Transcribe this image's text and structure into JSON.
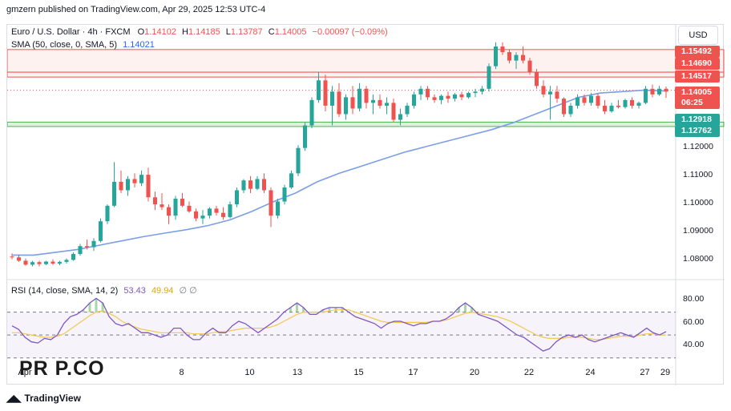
{
  "header": {
    "publisher_line": "gmzern published on TradingView.com, Apr 29, 2025 12:53 UTC-4"
  },
  "legend": {
    "symbol": "Euro / U.S. Dollar · 4h · FXCM",
    "open_label": "O",
    "open": "1.14102",
    "high_label": "H",
    "high": "1.14185",
    "low_label": "L",
    "low": "1.13787",
    "close_label": "C",
    "close": "1.14005",
    "change": "−0.00097 (−0.09%)",
    "sma_label": "SMA (50, close, 0, SMA, 5)",
    "sma_value": "1.14021",
    "rsi_label": "RSI (14, close, SMA, 14, 2)",
    "rsi_value": "53.43",
    "rsi_sma_value": "49.94",
    "rsi_extra": "∅ ∅"
  },
  "currency_button": "USD",
  "price_axis": {
    "ticks": [
      "1.12000",
      "1.11000",
      "1.10000",
      "1.09000",
      "1.08000"
    ],
    "tags": [
      {
        "text": "1.15492",
        "color": "#ef5350",
        "y": 1.15492
      },
      {
        "text": "1.14690",
        "color": "#ef5350",
        "y": 1.1469
      },
      {
        "text": "1.14517",
        "color": "#ef5350",
        "y": 1.14517
      },
      {
        "text": "1.14005",
        "color": "#ef5350",
        "y": 1.1405
      },
      {
        "text": "06:25",
        "color": "#ef5350",
        "y": 1.136
      },
      {
        "text": "1.12918",
        "color": "#26a69a",
        "y": 1.12918
      },
      {
        "text": "1.12762",
        "color": "#26a69a",
        "y": 1.12762
      }
    ]
  },
  "rsi_axis": {
    "ticks": [
      "80.00",
      "60.00",
      "40.00"
    ]
  },
  "time_axis": {
    "ticks": [
      "Apr",
      "8",
      "10",
      "13",
      "15",
      "17",
      "20",
      "22",
      "24",
      "27",
      "29"
    ]
  },
  "watermark": "PR P.CO",
  "brand": "TradingView",
  "colors": {
    "up": "#26a69a",
    "down": "#ef5350",
    "sma": "#2962ff",
    "rsi": "#7e57c2",
    "rsi_sma": "#f2c94c",
    "resistance_zone": "#ef5350",
    "support_zone": "#4caf50"
  },
  "chart_data": {
    "type": "candlestick",
    "symbol": "EURUSD",
    "timeframe": "4h",
    "ylim": [
      1.077,
      1.158
    ],
    "zones": {
      "resistance_upper": [
        1.1469,
        1.15492
      ],
      "resistance_lower": [
        1.14517,
        1.1469
      ],
      "support": [
        1.12762,
        1.12918
      ]
    },
    "candles": [
      [
        1.0815,
        1.0826,
        1.0805,
        1.0812
      ],
      [
        1.0812,
        1.0822,
        1.0796,
        1.08
      ],
      [
        1.08,
        1.0808,
        1.0782,
        1.0786
      ],
      [
        1.0786,
        1.08,
        1.078,
        1.0795
      ],
      [
        1.0795,
        1.08,
        1.078,
        1.0788
      ],
      [
        1.0788,
        1.08,
        1.0784,
        1.0797
      ],
      [
        1.0797,
        1.0805,
        1.0785,
        1.079
      ],
      [
        1.079,
        1.08,
        1.0784,
        1.0796
      ],
      [
        1.0796,
        1.0808,
        1.079,
        1.0803
      ],
      [
        1.0803,
        1.083,
        1.08,
        1.0824
      ],
      [
        1.0824,
        1.086,
        1.0818,
        1.0852
      ],
      [
        1.0852,
        1.0875,
        1.084,
        1.0848
      ],
      [
        1.0848,
        1.088,
        1.0835,
        1.087
      ],
      [
        1.087,
        1.095,
        1.0865,
        1.094
      ],
      [
        1.094,
        1.1,
        1.093,
        1.0995
      ],
      [
        1.0995,
        1.115,
        1.099,
        1.108
      ],
      [
        1.108,
        1.112,
        1.104,
        1.105
      ],
      [
        1.105,
        1.11,
        1.103,
        1.109
      ],
      [
        1.109,
        1.111,
        1.106,
        1.1075
      ],
      [
        1.1075,
        1.112,
        1.1065,
        1.1105
      ],
      [
        1.1105,
        1.113,
        1.101,
        1.1025
      ],
      [
        1.1025,
        1.1045,
        1.098,
        1.1
      ],
      [
        1.1,
        1.104,
        1.098,
        1.099
      ],
      [
        1.099,
        1.1,
        1.093,
        1.096
      ],
      [
        1.096,
        1.103,
        1.0945,
        1.102
      ],
      [
        1.102,
        1.104,
        1.099,
        1.0995
      ],
      [
        1.0995,
        1.101,
        1.097,
        1.0975
      ],
      [
        1.0975,
        1.0985,
        1.094,
        1.095
      ],
      [
        1.095,
        1.098,
        1.093,
        1.096
      ],
      [
        1.096,
        1.099,
        1.095,
        1.0985
      ],
      [
        1.0985,
        1.0995,
        1.096,
        1.097
      ],
      [
        1.097,
        1.099,
        1.0945,
        1.0955
      ],
      [
        1.0955,
        1.101,
        1.095,
        1.1
      ],
      [
        1.1,
        1.106,
        1.099,
        1.105
      ],
      [
        1.105,
        1.109,
        1.104,
        1.1085
      ],
      [
        1.1085,
        1.11,
        1.104,
        1.1055
      ],
      [
        1.1055,
        1.11,
        1.105,
        1.109
      ],
      [
        1.109,
        1.111,
        1.104,
        1.105
      ],
      [
        1.105,
        1.106,
        1.092,
        1.096
      ],
      [
        1.096,
        1.102,
        1.095,
        1.101
      ],
      [
        1.101,
        1.107,
        1.1,
        1.106
      ],
      [
        1.106,
        1.112,
        1.1055,
        1.111
      ],
      [
        1.111,
        1.121,
        1.11,
        1.12
      ],
      [
        1.12,
        1.129,
        1.119,
        1.128
      ],
      [
        1.128,
        1.138,
        1.127,
        1.137
      ],
      [
        1.137,
        1.147,
        1.136,
        1.144
      ],
      [
        1.144,
        1.146,
        1.133,
        1.135
      ],
      [
        1.135,
        1.142,
        1.128,
        1.14
      ],
      [
        1.14,
        1.143,
        1.131,
        1.132
      ],
      [
        1.132,
        1.139,
        1.13,
        1.138
      ],
      [
        1.138,
        1.142,
        1.132,
        1.134
      ],
      [
        1.134,
        1.143,
        1.133,
        1.141
      ],
      [
        1.141,
        1.142,
        1.134,
        1.136
      ],
      [
        1.136,
        1.139,
        1.132,
        1.137
      ],
      [
        1.137,
        1.139,
        1.134,
        1.135
      ],
      [
        1.135,
        1.138,
        1.132,
        1.136
      ],
      [
        1.136,
        1.1375,
        1.129,
        1.13
      ],
      [
        1.13,
        1.134,
        1.128,
        1.132
      ],
      [
        1.132,
        1.136,
        1.131,
        1.135
      ],
      [
        1.135,
        1.14,
        1.134,
        1.139
      ],
      [
        1.139,
        1.142,
        1.137,
        1.141
      ],
      [
        1.141,
        1.142,
        1.137,
        1.138
      ],
      [
        1.138,
        1.139,
        1.136,
        1.137
      ],
      [
        1.137,
        1.139,
        1.1355,
        1.1385
      ],
      [
        1.1385,
        1.14,
        1.136,
        1.1375
      ],
      [
        1.1375,
        1.1395,
        1.1365,
        1.139
      ],
      [
        1.139,
        1.14,
        1.137,
        1.138
      ],
      [
        1.138,
        1.14,
        1.1375,
        1.1395
      ],
      [
        1.1395,
        1.141,
        1.138,
        1.14
      ],
      [
        1.14,
        1.142,
        1.139,
        1.141
      ],
      [
        1.141,
        1.15,
        1.14,
        1.149
      ],
      [
        1.149,
        1.1575,
        1.148,
        1.156
      ],
      [
        1.156,
        1.1575,
        1.153,
        1.154
      ],
      [
        1.154,
        1.155,
        1.15,
        1.151
      ],
      [
        1.151,
        1.154,
        1.148,
        1.153
      ],
      [
        1.153,
        1.156,
        1.15,
        1.151
      ],
      [
        1.151,
        1.152,
        1.146,
        1.147
      ],
      [
        1.147,
        1.148,
        1.141,
        1.142
      ],
      [
        1.142,
        1.144,
        1.138,
        1.139
      ],
      [
        1.139,
        1.142,
        1.13,
        1.14
      ],
      [
        1.14,
        1.142,
        1.136,
        1.1375
      ],
      [
        1.1375,
        1.138,
        1.131,
        1.132
      ],
      [
        1.132,
        1.136,
        1.131,
        1.135
      ],
      [
        1.135,
        1.139,
        1.134,
        1.138
      ],
      [
        1.138,
        1.139,
        1.135,
        1.136
      ],
      [
        1.136,
        1.1395,
        1.135,
        1.1385
      ],
      [
        1.1385,
        1.1395,
        1.134,
        1.135
      ],
      [
        1.135,
        1.137,
        1.132,
        1.133
      ],
      [
        1.133,
        1.136,
        1.1325,
        1.135
      ],
      [
        1.135,
        1.137,
        1.134,
        1.1345
      ],
      [
        1.1345,
        1.1375,
        1.134,
        1.137
      ],
      [
        1.137,
        1.138,
        1.134,
        1.135
      ],
      [
        1.135,
        1.1365,
        1.134,
        1.136
      ],
      [
        1.136,
        1.142,
        1.1355,
        1.141
      ],
      [
        1.141,
        1.1425,
        1.138,
        1.139
      ],
      [
        1.139,
        1.142,
        1.1385,
        1.141
      ],
      [
        1.141,
        1.1418,
        1.1378,
        1.14
      ]
    ],
    "sma": [
      1.082,
      1.082,
      1.083,
      1.084,
      1.0855,
      1.087,
      1.0885,
      1.0898,
      1.091,
      1.0925,
      1.0945,
      1.0975,
      1.101,
      1.104,
      1.108,
      1.111,
      1.1135,
      1.116,
      1.1185,
      1.1205,
      1.1225,
      1.1245,
      1.1265,
      1.129,
      1.132,
      1.135,
      1.138,
      1.1395,
      1.14,
      1.1405,
      1.1402
    ],
    "rsi": [
      58,
      55,
      48,
      44,
      43,
      47,
      46,
      50,
      60,
      66,
      68,
      72,
      78,
      82,
      78,
      66,
      60,
      58,
      60,
      56,
      52,
      52,
      50,
      48,
      50,
      56,
      56,
      50,
      46,
      46,
      52,
      56,
      52,
      52,
      58,
      62,
      60,
      56,
      52,
      56,
      60,
      64,
      70,
      74,
      78,
      74,
      68,
      68,
      72,
      74,
      74,
      74,
      70,
      66,
      64,
      62,
      60,
      56,
      60,
      62,
      62,
      60,
      58,
      60,
      60,
      62,
      62,
      64,
      68,
      74,
      78,
      74,
      68,
      66,
      64,
      62,
      58,
      54,
      50,
      48,
      44,
      40,
      36,
      38,
      44,
      48,
      50,
      48,
      50,
      46,
      44,
      46,
      48,
      50,
      52,
      50,
      48,
      52,
      56,
      52,
      50,
      53
    ],
    "rsi_sma": [
      52,
      52,
      51,
      50,
      49,
      48,
      48,
      49,
      51,
      55,
      59,
      63,
      67,
      70,
      71,
      69,
      66,
      62,
      59,
      57,
      55,
      54,
      53,
      52,
      52,
      52,
      52,
      52,
      51,
      51,
      51,
      52,
      53,
      53,
      54,
      55,
      56,
      56,
      56,
      56,
      57,
      59,
      62,
      65,
      68,
      70,
      70,
      70,
      70,
      71,
      72,
      72,
      72,
      70,
      68,
      66,
      64,
      62,
      61,
      61,
      61,
      61,
      61,
      61,
      61,
      62,
      62,
      63,
      65,
      67,
      69,
      70,
      69,
      68,
      67,
      66,
      64,
      62,
      59,
      56,
      53,
      50,
      48,
      47,
      47,
      47,
      48,
      48,
      48,
      47,
      46,
      46,
      47,
      48,
      49,
      49,
      49,
      50,
      51,
      51,
      50,
      50
    ],
    "rsi_ylim": [
      27,
      90
    ]
  }
}
